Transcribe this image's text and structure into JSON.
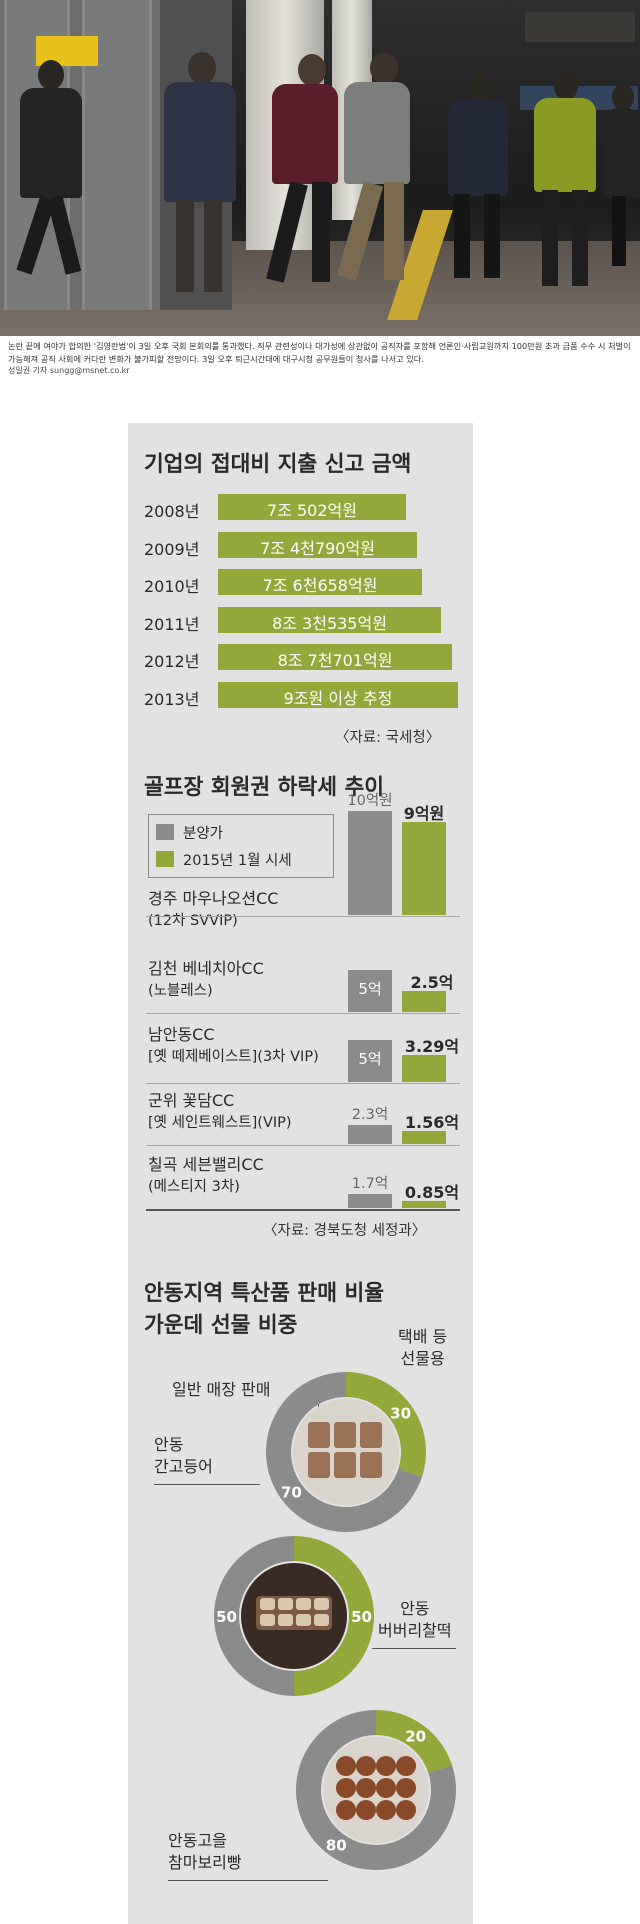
{
  "photo": {
    "caption": "논란 끝에 여야가 합의한 '김영란법'이 3일 오후 국회 본회의를 통과했다. 직무 관련성이나 대가성에 상관없이 공직자를 포함해 언론인·사립교원까지 100만원 초과 금품 수수 시 처벌이 가능해져 공직 사회에 커다란 변화가 불가피할 전망이다. 3일 오후 퇴근시간대에 대구시청 공무원들이 청사를 나서고 있다.",
    "credit": "성일권 기자 sungg@msnet.co.kr"
  },
  "chart_data": [
    {
      "type": "bar",
      "title": "기업의 접대비 지출 신고 금액",
      "categories": [
        "2008년",
        "2009년",
        "2010년",
        "2011년",
        "2012년",
        "2013년"
      ],
      "values": [
        7.0502,
        7.479,
        7.6658,
        8.3535,
        8.7701,
        9.0
      ],
      "value_labels": [
        "7조 502억원",
        "7조 4천790억원",
        "7조 6천658억원",
        "8조 3천535억원",
        "8조 7천701억원",
        "9조원 이상 추정"
      ],
      "unit": "조원",
      "source": "〈자료: 국세청〉",
      "bar_color": "#93a83a"
    },
    {
      "type": "bar",
      "title": "골프장 회원권 하락세 추이",
      "legend": [
        "분양가",
        "2015년 1월 시세"
      ],
      "colors": [
        "#8b8b8b",
        "#93a83a"
      ],
      "categories": [
        {
          "name": "경주 마우나오션CC",
          "sub": "(12차 SVVIP)"
        },
        {
          "name": "김천 베네치아CC",
          "sub": "(노블레스)"
        },
        {
          "name": "남안동CC",
          "sub": "[옛 떼제베이스트](3차 VIP)"
        },
        {
          "name": "군위 꽃담CC",
          "sub": "[옛 세인트웨스트](VIP)"
        },
        {
          "name": "칠곡 세븐밸리CC",
          "sub": "(메스티지 3차)"
        }
      ],
      "series": [
        {
          "name": "분양가",
          "values": [
            10,
            5,
            5,
            2.3,
            1.7
          ],
          "labels": [
            "10억원",
            "5억",
            "5억",
            "2.3억",
            "1.7억"
          ]
        },
        {
          "name": "2015년 1월 시세",
          "values": [
            9,
            2.5,
            3.29,
            1.56,
            0.85
          ],
          "labels": [
            "9억원",
            "2.5억",
            "3.29억",
            "1.56억",
            "0.85억"
          ]
        }
      ],
      "unit": "억원",
      "source": "〈자료: 경북도청 세정과〉"
    },
    {
      "type": "pie",
      "title_lines": [
        "안동지역 특산품 판매 비율",
        "가운데 선물 비중"
      ],
      "slice_names": [
        "일반 매장 판매",
        "택배 등 선물용"
      ],
      "colors": [
        "#8b8b8b",
        "#93a83a"
      ],
      "items": [
        {
          "name_lines": [
            "안동",
            "간고등어"
          ],
          "values": [
            70,
            30
          ]
        },
        {
          "name_lines": [
            "안동",
            "버버리찰떡"
          ],
          "values": [
            50,
            50
          ]
        },
        {
          "name_lines": [
            "안동고을",
            "참마보리빵"
          ],
          "values": [
            80,
            20
          ]
        }
      ]
    }
  ],
  "labels": {
    "general_store": "일반 매장 판매",
    "gift_line1": "택배 등",
    "gift_line2": "선물용"
  }
}
